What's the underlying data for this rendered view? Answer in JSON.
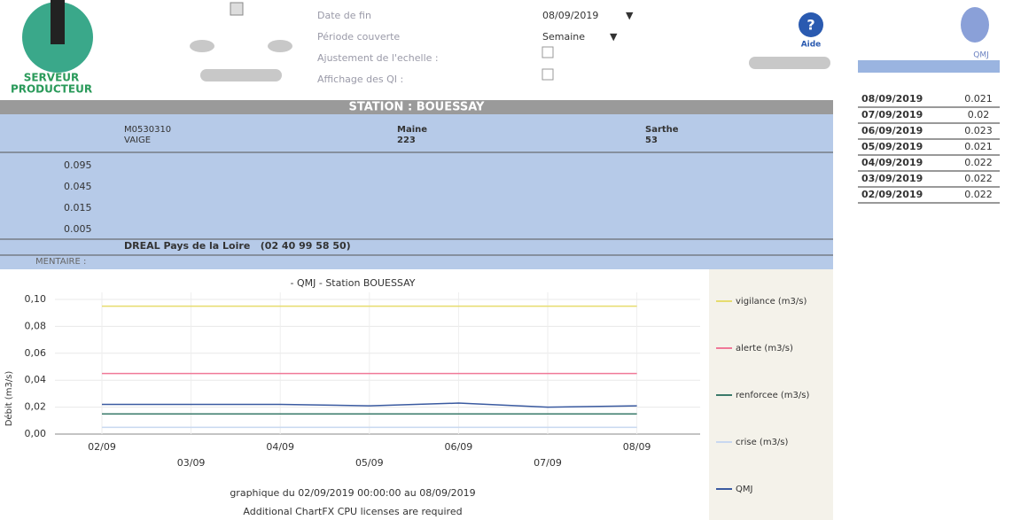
{
  "header": {
    "logo": [
      "SERVEUR",
      "PRODUCTEUR"
    ],
    "fields": [
      {
        "label": "Date de fin",
        "value": "08/09/2019"
      },
      {
        "label": "Période couverte",
        "value": "Semaine"
      },
      {
        "label": "Ajustement de l'echelle :"
      },
      {
        "label": "Affichage des QI :"
      }
    ],
    "help": "Aide",
    "qmj": "QMJ"
  },
  "station": {
    "title": "STATION : BOUESSAY",
    "info": [
      "M0530310",
      "VAIGE",
      "Maine",
      "223",
      "Sarthe",
      "53"
    ],
    "thresholds": [
      0.095,
      0.045,
      0.015,
      0.005
    ],
    "contact": "DREAL Pays de la Loire   (02 40 99 58 50)",
    "comment": "MENTAIRE :"
  },
  "chart": {
    "type": "line",
    "title": "- QMJ - Station BOUESSAY",
    "y_label": "Débit (m3/s)",
    "categories": [
      "02/09",
      "03/09",
      "04/09",
      "05/09",
      "06/09",
      "07/09",
      "08/09"
    ],
    "ylim": [
      0,
      0.1
    ],
    "yticks": [
      {
        "value": 0,
        "label": "0,00"
      },
      {
        "value": 0.02,
        "label": "0,02"
      },
      {
        "value": 0.04,
        "label": "0,04"
      },
      {
        "value": 0.06,
        "label": "0,06"
      },
      {
        "value": 0.08,
        "label": "0,08"
      },
      {
        "value": 0.1,
        "label": "0,10"
      }
    ],
    "series": [
      {
        "name": "vigilance (m3/s)",
        "color": "#e6dc6e",
        "values": [
          0.095,
          0.095,
          0.095,
          0.095,
          0.095,
          0.095,
          0.095
        ]
      },
      {
        "name": "alerte (m3/s)",
        "color": "#f07898",
        "values": [
          0.045,
          0.045,
          0.045,
          0.045,
          0.045,
          0.045,
          0.045
        ]
      },
      {
        "name": "renforcee (m3/s)",
        "color": "#3a7a6a",
        "values": [
          0.015,
          0.015,
          0.015,
          0.015,
          0.015,
          0.015,
          0.015
        ]
      },
      {
        "name": "crise (m3/s)",
        "color": "#c8d8f0",
        "values": [
          0.005,
          0.005,
          0.005,
          0.005,
          0.005,
          0.005,
          0.005
        ]
      },
      {
        "name": "QMJ",
        "color": "#3a5aa0",
        "values": [
          0.022,
          0.022,
          0.022,
          0.021,
          0.023,
          0.02,
          0.021
        ]
      }
    ],
    "footer": [
      "graphique du 02/09/2019 00:00:00 au 08/09/2019",
      "Additional ChartFX CPU licenses are required"
    ]
  },
  "table": {
    "rows": [
      [
        "08/09/2019",
        0.021
      ],
      [
        "07/09/2019",
        0.02
      ],
      [
        "06/09/2019",
        0.023
      ],
      [
        "05/09/2019",
        0.021
      ],
      [
        "04/09/2019",
        0.022
      ],
      [
        "03/09/2019",
        0.022
      ],
      [
        "02/09/2019",
        0.022
      ]
    ]
  }
}
